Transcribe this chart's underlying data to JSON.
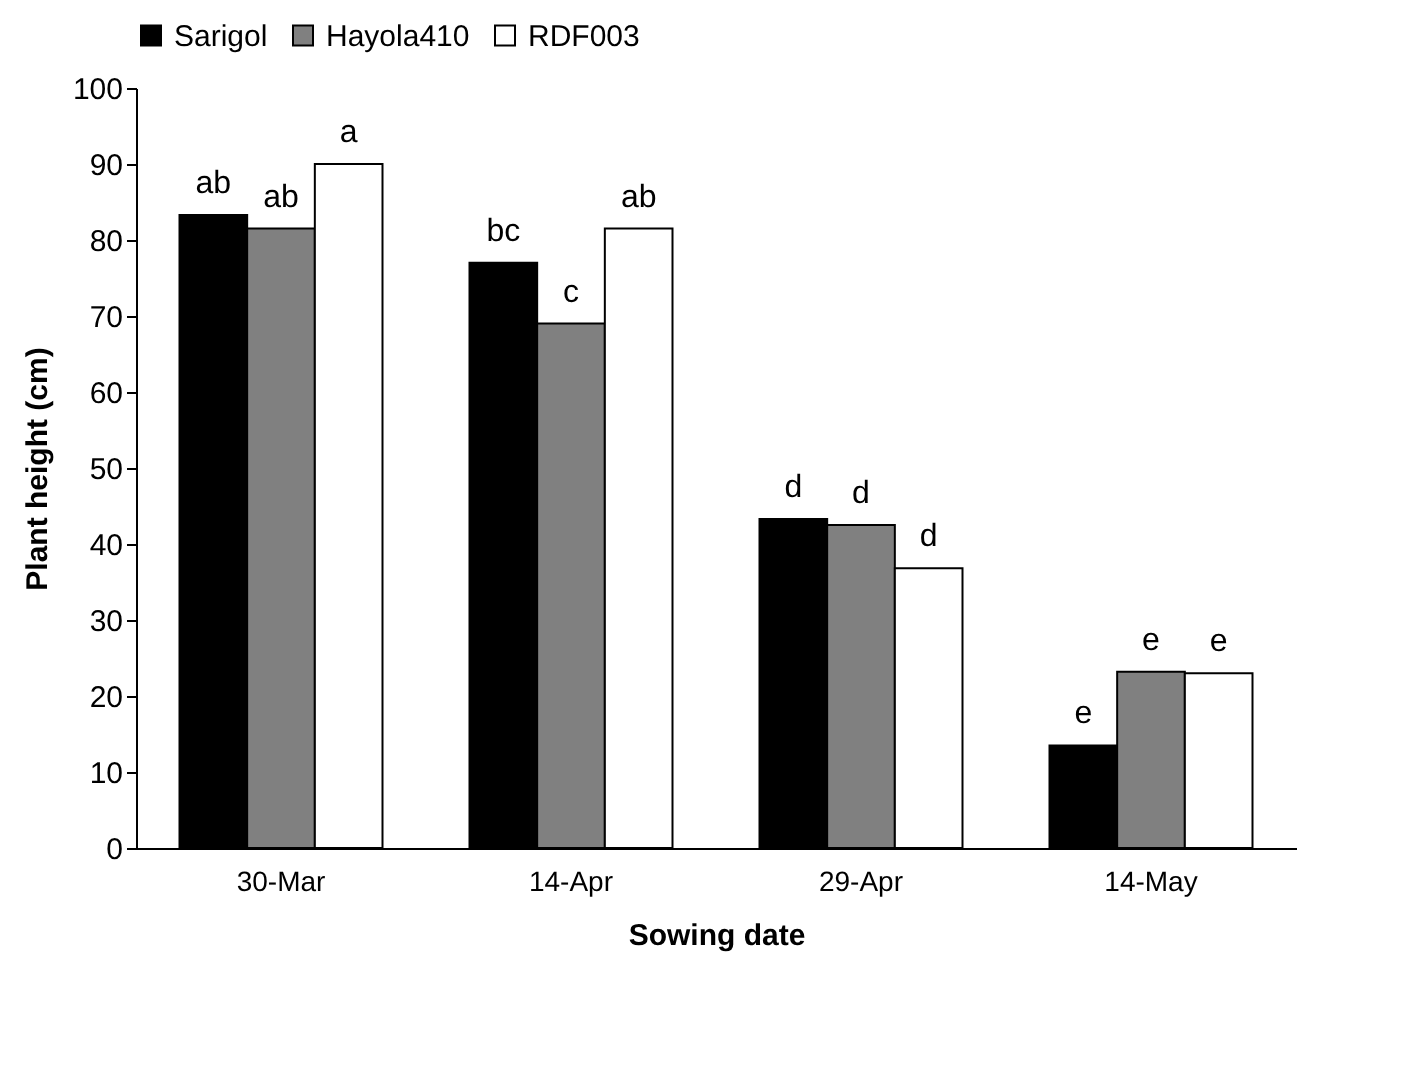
{
  "chart_data": {
    "type": "bar",
    "xlabel": "Sowing date",
    "ylabel": "Plant height (cm)",
    "categories": [
      "30-Mar",
      "14-Apr",
      "29-Apr",
      "14-May"
    ],
    "series": [
      {
        "name": "Sarigol",
        "color": "#000000",
        "values": [
          83.3,
          77,
          43.3,
          13.5
        ],
        "value_labels": [
          "ab",
          "bc",
          "d",
          "e"
        ]
      },
      {
        "name": "Hayola410",
        "color": "#808080",
        "values": [
          81.5,
          69,
          42.5,
          23.2
        ],
        "value_labels": [
          "ab",
          "c",
          "d",
          "e"
        ]
      },
      {
        "name": "RDF003",
        "color": "#ffffff",
        "values": [
          90,
          81.5,
          36.8,
          23
        ],
        "value_labels": [
          "a",
          "ab",
          "d",
          "e"
        ]
      }
    ],
    "ylim": [
      0,
      100
    ],
    "yticks": [
      0,
      10,
      20,
      30,
      40,
      50,
      60,
      70,
      80,
      90,
      100
    ],
    "grid": false,
    "legend": "top"
  }
}
